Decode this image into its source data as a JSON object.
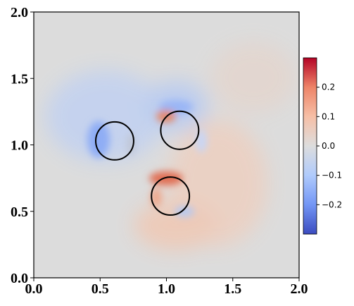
{
  "chart_data": {
    "type": "field",
    "xlim": [
      0,
      2
    ],
    "ylim": [
      0,
      2
    ],
    "xticks": [
      {
        "value": 0,
        "label": "0.0"
      },
      {
        "value": 0.5,
        "label": "0.5"
      },
      {
        "value": 1,
        "label": "1.0"
      },
      {
        "value": 1.5,
        "label": "1.5"
      },
      {
        "value": 2,
        "label": "2.0"
      }
    ],
    "yticks": [
      {
        "value": 0,
        "label": "0.0"
      },
      {
        "value": 0.5,
        "label": "0.5"
      },
      {
        "value": 1,
        "label": "1.0"
      },
      {
        "value": 1.5,
        "label": "1.5"
      },
      {
        "value": 2,
        "label": "2.0"
      }
    ],
    "circles": {
      "x": [
        0.61,
        1.1,
        1.03
      ],
      "y": [
        1.03,
        1.11,
        0.615
      ],
      "radius": 0.143,
      "color": "#000000"
    },
    "colorbar": {
      "clim": [
        -0.3,
        0.3
      ],
      "ticks": [
        {
          "value": -0.2,
          "label": "−0.2"
        },
        {
          "value": -0.1,
          "label": "−0.1"
        },
        {
          "value": 0,
          "label": "0.0"
        },
        {
          "value": 0.1,
          "label": "0.1"
        },
        {
          "value": 0.2,
          "label": "0.2"
        }
      ],
      "colormap": [
        "#3b4cc0",
        "#7396f5",
        "#b0cbfc",
        "#dddddd",
        "#f6bfa6",
        "#ee8468",
        "#b40426"
      ]
    }
  }
}
